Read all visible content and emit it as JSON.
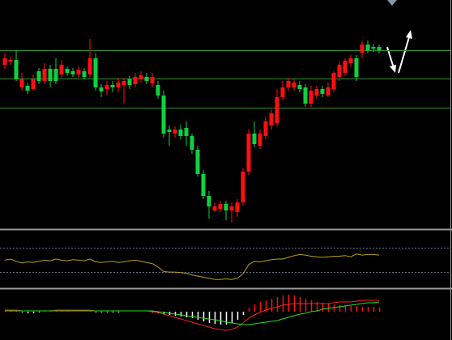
{
  "chart_data": [
    {
      "type": "candlestick",
      "open": [
        203,
        207,
        209,
        175,
        177,
        173,
        195,
        183,
        198,
        198,
        191,
        198,
        195,
        191,
        195,
        191,
        211,
        175,
        173,
        178,
        175,
        178,
        185,
        179,
        185,
        188,
        180,
        178,
        165,
        123,
        118,
        123,
        125,
        115,
        98,
        68,
        41,
        23,
        25,
        31,
        23,
        21,
        33,
        71,
        118,
        103,
        115,
        128,
        131,
        163,
        175,
        175,
        178,
        175,
        155,
        165,
        173,
        165,
        173,
        188,
        193,
        205,
        211,
        218,
        228,
        225,
        225
      ],
      "high": [
        218,
        213,
        221,
        193,
        181,
        191,
        199,
        205,
        203,
        211,
        209,
        201,
        199,
        201,
        199,
        235,
        217,
        179,
        183,
        183,
        187,
        187,
        189,
        193,
        195,
        193,
        193,
        183,
        171,
        128,
        127,
        129,
        133,
        118,
        103,
        73,
        47,
        33,
        35,
        35,
        33,
        37,
        75,
        123,
        133,
        123,
        139,
        148,
        173,
        183,
        187,
        185,
        183,
        179,
        177,
        177,
        177,
        181,
        195,
        207,
        211,
        215,
        215,
        233,
        233,
        229,
        228
      ],
      "low": [
        198,
        203,
        183,
        171,
        167,
        171,
        179,
        179,
        175,
        179,
        187,
        189,
        188,
        187,
        185,
        187,
        171,
        163,
        165,
        169,
        169,
        155,
        173,
        175,
        181,
        179,
        175,
        161,
        113,
        103,
        113,
        111,
        103,
        93,
        65,
        37,
        13,
        21,
        21,
        11,
        8,
        15,
        29,
        67,
        101,
        99,
        111,
        123,
        127,
        159,
        171,
        171,
        169,
        151,
        151,
        161,
        163,
        163,
        169,
        183,
        189,
        201,
        183,
        211,
        217,
        219,
        217
      ],
      "close": [
        211,
        209,
        185,
        185,
        171,
        185,
        183,
        198,
        183,
        183,
        203,
        193,
        191,
        197,
        188,
        211,
        175,
        170,
        178,
        175,
        181,
        183,
        178,
        188,
        190,
        183,
        188,
        165,
        118,
        120,
        123,
        115,
        115,
        98,
        68,
        41,
        28,
        28,
        31,
        23,
        28,
        33,
        71,
        118,
        105,
        118,
        133,
        143,
        163,
        175,
        183,
        181,
        173,
        155,
        171,
        173,
        167,
        175,
        193,
        203,
        208,
        211,
        188,
        228,
        221,
        223,
        221
      ],
      "ylim": [
        0,
        283
      ],
      "hlines": [
        221,
        186,
        150
      ],
      "up_color": "#ff1010",
      "down_color": "#10d040",
      "hline_color": "#2f8f2f"
    },
    {
      "type": "line",
      "series": [
        {
          "color": "#b8a010",
          "values": [
            48,
            50,
            46,
            43,
            45,
            44,
            46,
            48,
            47,
            50,
            48,
            47,
            49,
            48,
            47,
            50,
            45,
            44,
            45,
            46,
            44,
            45,
            47,
            48,
            46,
            44,
            42,
            36,
            28,
            27,
            27,
            26,
            25,
            22,
            20,
            18,
            16,
            14,
            14,
            15,
            14,
            16,
            24,
            40,
            46,
            45,
            47,
            49,
            50,
            50,
            53,
            56,
            58,
            57,
            55,
            54,
            53,
            54,
            55,
            55,
            56,
            54,
            59,
            57,
            58,
            58,
            57
          ]
        }
      ],
      "ylim": [
        0,
        100
      ],
      "hlines": [
        70,
        27
      ],
      "hline_color": "#6a6a8a"
    },
    {
      "type": "macd",
      "values": [
        2,
        2,
        1,
        -1,
        -2,
        -2,
        -1,
        1,
        1,
        1,
        2,
        1,
        0,
        0,
        0,
        1,
        -1,
        -1,
        -1,
        -1,
        -1,
        0,
        0,
        0,
        0,
        0,
        -1,
        -2,
        -3,
        -4,
        -5,
        -6,
        -7,
        -8,
        -10,
        -12,
        -14,
        -15,
        -16,
        -16,
        -14,
        -10,
        -4,
        5,
        9,
        12,
        14,
        16,
        18,
        20,
        21,
        20,
        18,
        16,
        14,
        12,
        11,
        10,
        9,
        8,
        8,
        7,
        7,
        6,
        6,
        6,
        5
      ],
      "up_color": "#ff1010",
      "down_color": "#ffffff",
      "series": [
        {
          "color": "#ff2020",
          "values": [
            2,
            2,
            2,
            1,
            1,
            1,
            1,
            1,
            1,
            2,
            2,
            2,
            2,
            2,
            2,
            2,
            1,
            1,
            1,
            1,
            1,
            1,
            1,
            1,
            1,
            1,
            0,
            -1,
            -3,
            -5,
            -7,
            -9,
            -11,
            -13,
            -15,
            -17,
            -19,
            -21,
            -22,
            -23,
            -22,
            -19,
            -14,
            -8,
            -4,
            -1,
            2,
            4,
            6,
            8,
            9,
            10,
            10,
            10,
            10,
            10,
            10,
            10,
            11,
            12,
            12,
            12,
            13,
            14,
            14,
            14,
            14
          ]
        },
        {
          "color": "#20e020",
          "values": [
            1,
            1,
            1,
            1,
            1,
            1,
            1,
            1,
            1,
            1,
            1,
            1,
            1,
            1,
            1,
            1,
            1,
            1,
            1,
            1,
            1,
            1,
            1,
            1,
            1,
            1,
            1,
            0,
            -1,
            -2,
            -3,
            -4,
            -5,
            -6,
            -7,
            -8,
            -9,
            -10,
            -11,
            -13,
            -14,
            -15,
            -16,
            -16,
            -15,
            -14,
            -13,
            -12,
            -11,
            -9,
            -7,
            -5,
            -3,
            -2,
            0,
            1,
            3,
            4,
            5,
            6,
            7,
            8,
            9,
            10,
            11,
            11,
            12
          ]
        }
      ],
      "ylim": [
        -35,
        27
      ]
    }
  ]
}
